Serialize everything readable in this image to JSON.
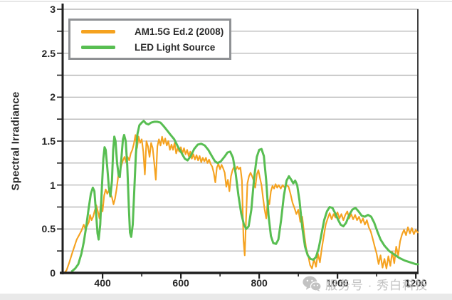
{
  "figure": {
    "y_axis_label": "Spectral Irradiance",
    "watermark_text": "服务号 · 秀白科技"
  },
  "legend": {
    "items": [
      {
        "label": "AM1.5G Ed.2 (2008)",
        "color": "#F5A21F"
      },
      {
        "label": "LED Light Source",
        "color": "#58BE52"
      }
    ]
  },
  "chart_data": {
    "type": "line",
    "title": "",
    "xlabel": "",
    "ylabel": "Spectral Irradiance",
    "x_range": [
      298,
      1207
    ],
    "y_range": [
      0,
      3
    ],
    "grid": "horizontal gridlines every 0.25, no vertical gridlines",
    "legend_position": "top-left",
    "y_grid_step": 0.25,
    "colors": {
      "grid": "#ABABAB",
      "axis": "#1F1F1F",
      "frame": "#404040"
    },
    "x_ticks": [
      {
        "v": 400,
        "label": "400"
      },
      {
        "v": 600,
        "label": "600"
      },
      {
        "v": 800,
        "label": "800"
      },
      {
        "v": 1000,
        "label": "1000"
      },
      {
        "v": 1200,
        "label": "1200"
      }
    ],
    "x_minor_ticks": [
      500,
      700,
      900,
      1100
    ],
    "y_ticks": [
      {
        "v": 0,
        "label": "0"
      },
      {
        "v": 0.5,
        "label": "0.5"
      },
      {
        "v": 1,
        "label": "1"
      },
      {
        "v": 1.5,
        "label": "1.5"
      },
      {
        "v": 2,
        "label": "2"
      },
      {
        "v": 2.5,
        "label": "2.5"
      },
      {
        "v": 3,
        "label": "3"
      }
    ],
    "series": [
      {
        "id": "am15g",
        "name": "AM1.5G Ed.2 (2008)",
        "color": "#F5A21F",
        "width": 2.1,
        "x": [
          302,
          308,
          315,
          322,
          328,
          334,
          340,
          346,
          352,
          356,
          360,
          365,
          368,
          372,
          376,
          380,
          384,
          388,
          392,
          396,
          400,
          404,
          408,
          412,
          416,
          420,
          424,
          428,
          432,
          436,
          440,
          444,
          448,
          452,
          456,
          460,
          464,
          468,
          472,
          476,
          480,
          484,
          488,
          492,
          496,
          500,
          504,
          508,
          512,
          516,
          520,
          524,
          528,
          532,
          536,
          540,
          544,
          548,
          552,
          556,
          560,
          564,
          568,
          572,
          576,
          580,
          584,
          588,
          592,
          596,
          600,
          604,
          608,
          612,
          616,
          620,
          624,
          628,
          632,
          636,
          640,
          644,
          648,
          652,
          656,
          660,
          664,
          668,
          672,
          676,
          680,
          684,
          688,
          692,
          696,
          700,
          704,
          708,
          712,
          716,
          720,
          724,
          728,
          732,
          736,
          740,
          744,
          748,
          752,
          756,
          760,
          763,
          766,
          770,
          774,
          778,
          782,
          786,
          790,
          794,
          798,
          802,
          806,
          810,
          814,
          818,
          822,
          826,
          830,
          834,
          838,
          842,
          846,
          850,
          855,
          860,
          865,
          870,
          875,
          880,
          885,
          890,
          895,
          900,
          905,
          910,
          915,
          920,
          925,
          930,
          935,
          940,
          945,
          950,
          955,
          960,
          965,
          970,
          975,
          980,
          985,
          990,
          995,
          1000,
          1005,
          1010,
          1015,
          1020,
          1025,
          1030,
          1035,
          1040,
          1045,
          1050,
          1055,
          1060,
          1065,
          1070,
          1075,
          1080,
          1085,
          1090,
          1095,
          1100,
          1105,
          1110,
          1115,
          1120,
          1125,
          1130,
          1135,
          1140,
          1145,
          1150,
          1155,
          1160,
          1165,
          1170,
          1175,
          1180,
          1185,
          1190,
          1195,
          1200,
          1205
        ],
        "y": [
          0.0,
          0.03,
          0.12,
          0.22,
          0.3,
          0.38,
          0.43,
          0.48,
          0.55,
          0.5,
          0.53,
          0.58,
          0.66,
          0.6,
          0.64,
          0.71,
          0.77,
          0.7,
          0.62,
          0.82,
          0.7,
          0.88,
          0.95,
          0.9,
          0.94,
          0.9,
          0.86,
          0.78,
          0.85,
          0.96,
          1.1,
          1.15,
          1.22,
          1.28,
          1.32,
          1.26,
          1.32,
          1.28,
          1.36,
          1.4,
          1.47,
          1.57,
          1.42,
          1.55,
          1.48,
          1.52,
          1.38,
          1.12,
          1.5,
          1.44,
          1.32,
          1.48,
          1.42,
          1.25,
          1.06,
          1.44,
          1.52,
          1.45,
          1.55,
          1.47,
          1.53,
          1.45,
          1.5,
          1.4,
          1.46,
          1.4,
          1.48,
          1.36,
          1.42,
          1.38,
          1.43,
          1.36,
          1.42,
          1.35,
          1.4,
          1.33,
          1.38,
          1.3,
          1.35,
          1.29,
          1.34,
          1.28,
          1.33,
          1.26,
          1.31,
          1.27,
          1.31,
          1.25,
          1.29,
          1.24,
          1.21,
          1.14,
          1.03,
          1.2,
          1.24,
          1.18,
          1.23,
          1.19,
          1.14,
          0.98,
          1.06,
          0.93,
          1.1,
          1.17,
          1.21,
          1.17,
          1.21,
          1.18,
          1.2,
          1.05,
          0.37,
          0.2,
          0.55,
          1.02,
          1.1,
          1.14,
          1.1,
          1.05,
          0.97,
          1.12,
          1.17,
          1.08,
          1.0,
          0.85,
          0.72,
          0.62,
          0.84,
          0.78,
          0.93,
          0.99,
          0.96,
          1.01,
          0.97,
          1.0,
          0.96,
          1.0,
          0.97,
          1.0,
          0.98,
          0.9,
          0.8,
          0.74,
          0.67,
          0.72,
          0.58,
          0.64,
          0.44,
          0.28,
          0.2,
          0.09,
          0.05,
          0.16,
          0.07,
          0.22,
          0.12,
          0.28,
          0.42,
          0.55,
          0.62,
          0.68,
          0.61,
          0.67,
          0.63,
          0.69,
          0.62,
          0.67,
          0.6,
          0.66,
          0.7,
          0.62,
          0.67,
          0.61,
          0.66,
          0.6,
          0.64,
          0.57,
          0.62,
          0.55,
          0.6,
          0.52,
          0.47,
          0.39,
          0.3,
          0.22,
          0.1,
          0.2,
          0.06,
          0.16,
          0.05,
          0.19,
          0.08,
          0.24,
          0.11,
          0.3,
          0.2,
          0.36,
          0.44,
          0.49,
          0.43,
          0.52,
          0.45,
          0.51,
          0.44,
          0.49,
          0.46
        ]
      },
      {
        "id": "led",
        "name": "LED Light Source",
        "color": "#58BE52",
        "width": 3,
        "x": [
          322,
          330,
          338,
          346,
          352,
          358,
          364,
          370,
          375,
          379,
          383,
          387,
          390,
          394,
          398,
          402,
          405,
          408,
          412,
          416,
          420,
          424,
          427,
          430,
          433,
          437,
          441,
          444,
          448,
          452,
          455,
          459,
          463,
          467,
          470,
          473,
          477,
          481,
          485,
          489,
          494,
          500,
          505,
          511,
          517,
          524,
          532,
          540,
          548,
          556,
          565,
          574,
          583,
          592,
          601,
          610,
          617,
          625,
          634,
          643,
          652,
          661,
          670,
          679,
          687,
          694,
          702,
          711,
          719,
          726,
          733,
          740,
          747,
          754,
          761,
          767,
          773,
          780,
          787,
          794,
          800,
          806,
          812,
          818,
          824,
          830,
          836,
          843,
          849,
          856,
          863,
          870,
          876,
          882,
          887,
          892,
          897,
          903,
          910,
          917,
          924,
          931,
          938,
          945,
          952,
          959,
          966,
          973,
          980,
          987,
          994,
          1001,
          1008,
          1015,
          1022,
          1030,
          1038,
          1046,
          1054,
          1062,
          1070,
          1078,
          1086,
          1094,
          1102,
          1110,
          1120,
          1132,
          1145,
          1158,
          1172,
          1186,
          1200,
          1206
        ],
        "y": [
          0.02,
          0.05,
          0.1,
          0.22,
          0.35,
          0.52,
          0.72,
          0.9,
          0.97,
          0.93,
          0.7,
          0.45,
          0.38,
          0.55,
          0.95,
          1.3,
          1.43,
          1.4,
          1.2,
          0.98,
          0.87,
          1.05,
          1.4,
          1.55,
          1.5,
          1.25,
          1.11,
          1.09,
          1.3,
          1.52,
          1.57,
          1.5,
          1.22,
          0.75,
          0.46,
          0.41,
          0.55,
          0.95,
          1.35,
          1.58,
          1.68,
          1.71,
          1.73,
          1.7,
          1.69,
          1.71,
          1.72,
          1.72,
          1.71,
          1.67,
          1.62,
          1.57,
          1.52,
          1.44,
          1.37,
          1.3,
          1.28,
          1.33,
          1.41,
          1.46,
          1.47,
          1.45,
          1.4,
          1.33,
          1.27,
          1.25,
          1.27,
          1.32,
          1.37,
          1.38,
          1.31,
          1.13,
          0.88,
          0.68,
          0.55,
          0.5,
          0.53,
          0.72,
          1.08,
          1.32,
          1.4,
          1.41,
          1.33,
          1.05,
          0.65,
          0.42,
          0.34,
          0.33,
          0.38,
          0.6,
          0.88,
          1.05,
          1.1,
          1.06,
          1.02,
          1.05,
          1.0,
          0.82,
          0.52,
          0.3,
          0.2,
          0.16,
          0.15,
          0.18,
          0.28,
          0.44,
          0.6,
          0.7,
          0.75,
          0.74,
          0.68,
          0.61,
          0.55,
          0.53,
          0.57,
          0.66,
          0.72,
          0.74,
          0.7,
          0.65,
          0.64,
          0.66,
          0.64,
          0.57,
          0.47,
          0.38,
          0.31,
          0.25,
          0.21,
          0.17,
          0.14,
          0.12,
          0.1,
          0.1
        ]
      }
    ]
  }
}
